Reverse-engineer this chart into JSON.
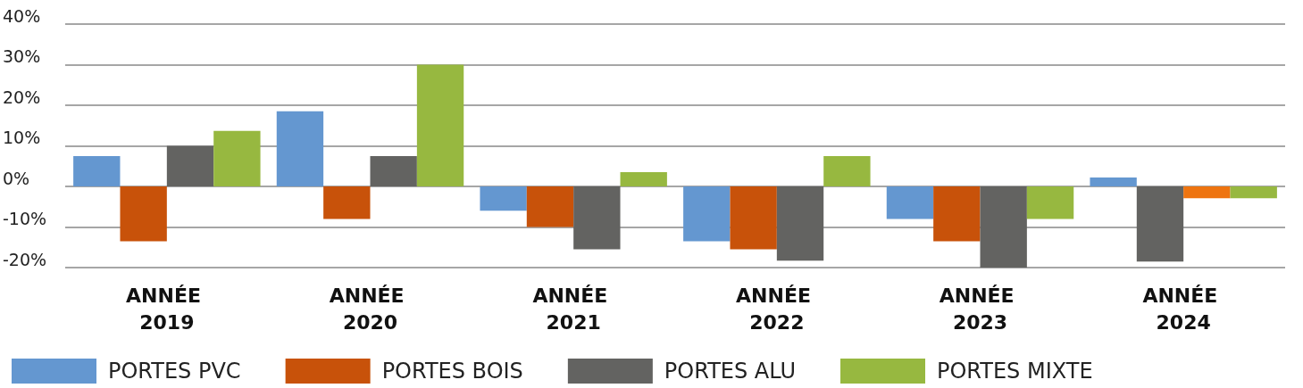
{
  "chart_data": {
    "type": "bar",
    "categories": [
      "ANNÉE 2019",
      "ANNÉE 2020",
      "ANNÉE 2021",
      "ANNÉE 2022",
      "ANNÉE 2023",
      "ANNÉE 2024"
    ],
    "series": [
      {
        "name": "PORTES PVC",
        "color": "#6497d0",
        "values": [
          7.5,
          18.5,
          -6,
          -13.5,
          -8,
          2.2
        ]
      },
      {
        "name": "PORTES BOIS",
        "color": "#c8520a",
        "values": [
          -13.5,
          -8,
          -10,
          -15.5,
          -13.5,
          -18.5
        ],
        "colors": [
          "#c8520a",
          "#c8520a",
          "#c8520a",
          "#c8520a",
          "#c8520a",
          "#636361"
        ]
      },
      {
        "name": "PORTES ALU",
        "color": "#636361",
        "values": [
          10,
          7.5,
          -15.5,
          -18.3,
          -20,
          -2.9
        ],
        "colors": [
          "#636361",
          "#636361",
          "#636361",
          "#636361",
          "#636361",
          "#ee7410"
        ]
      },
      {
        "name": "PORTES MIXTE",
        "color": "#97b840",
        "values": [
          13.7,
          30,
          3.5,
          7.5,
          -8,
          -2.9
        ]
      }
    ],
    "ylim": [
      -20,
      40
    ],
    "yticks": [
      {
        "value": -20,
        "label": "-20%"
      },
      {
        "value": -10,
        "label": "-10%"
      },
      {
        "value": 0,
        "label": "0%"
      },
      {
        "value": 10,
        "label": "10%"
      },
      {
        "value": 20,
        "label": "20%"
      },
      {
        "value": 30,
        "label": "30%"
      },
      {
        "value": 40,
        "label": "40%"
      }
    ],
    "grid": "y",
    "legend": "bottom"
  }
}
